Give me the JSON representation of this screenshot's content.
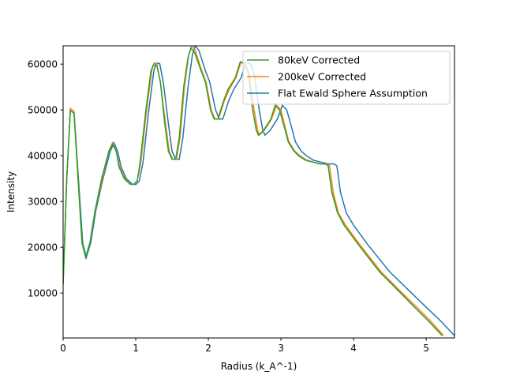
{
  "chart_data": {
    "type": "line",
    "title": "",
    "xlabel": "Radius (k_A^-1)",
    "ylabel": "Intensity",
    "xlim": [
      0,
      5.39
    ],
    "ylim": [
      200,
      64000
    ],
    "xticks": [
      0,
      1,
      2,
      3,
      4,
      5
    ],
    "yticks": [
      10000,
      20000,
      30000,
      40000,
      50000,
      60000
    ],
    "grid": false,
    "legend_placement": "upper right",
    "series": [
      {
        "name": "Flat Ewald Sphere Assumption",
        "color": "#1f77b4",
        "x": [
          0,
          0.05,
          0.1,
          0.15,
          0.27,
          0.32,
          0.38,
          0.45,
          0.55,
          0.65,
          0.7,
          0.75,
          0.8,
          0.87,
          0.95,
          1.0,
          1.05,
          1.1,
          1.18,
          1.25,
          1.28,
          1.33,
          1.38,
          1.45,
          1.5,
          1.55,
          1.6,
          1.65,
          1.72,
          1.78,
          1.82,
          1.87,
          1.95,
          2.02,
          2.1,
          2.15,
          2.2,
          2.28,
          2.35,
          2.45,
          2.52,
          2.58,
          2.63,
          2.7,
          2.75,
          2.78,
          2.85,
          2.95,
          3.02,
          3.08,
          3.15,
          3.2,
          3.28,
          3.35,
          3.45,
          3.55,
          3.65,
          3.73,
          3.77,
          3.82,
          3.9,
          4.0,
          4.2,
          4.5,
          4.8,
          5.0,
          5.2,
          5.39
        ],
        "y": [
          12000,
          35000,
          50300,
          49600,
          21000,
          17800,
          21000,
          28000,
          35000,
          41000,
          42800,
          41000,
          37500,
          35000,
          33800,
          33700,
          34500,
          38500,
          50000,
          58500,
          60200,
          60100,
          56000,
          47000,
          41000,
          39200,
          39200,
          44000,
          55000,
          62000,
          64000,
          63000,
          59000,
          56000,
          50000,
          48000,
          48000,
          52000,
          54500,
          57000,
          60500,
          60000,
          58000,
          50000,
          45500,
          44500,
          45500,
          48000,
          51000,
          50000,
          46000,
          43000,
          41000,
          40000,
          39000,
          38600,
          38200,
          38200,
          37800,
          32000,
          27500,
          24800,
          20500,
          14600,
          10000,
          6900,
          3900,
          700
        ]
      },
      {
        "name": "200keV Corrected",
        "color": "#ff7f0e",
        "x": [
          0,
          0.05,
          0.1,
          0.15,
          0.26,
          0.31,
          0.37,
          0.44,
          0.54,
          0.63,
          0.68,
          0.73,
          0.78,
          0.85,
          0.92,
          0.97,
          1.02,
          1.07,
          1.15,
          1.22,
          1.25,
          1.29,
          1.34,
          1.41,
          1.46,
          1.51,
          1.56,
          1.61,
          1.67,
          1.73,
          1.77,
          1.82,
          1.9,
          1.97,
          2.04,
          2.09,
          2.14,
          2.22,
          2.29,
          2.38,
          2.45,
          2.51,
          2.56,
          2.63,
          2.68,
          2.7,
          2.77,
          2.87,
          2.94,
          3.0,
          3.06,
          3.11,
          3.19,
          3.26,
          3.36,
          3.45,
          3.55,
          3.63,
          3.67,
          3.72,
          3.79,
          3.89,
          4.09,
          4.38,
          4.67,
          4.87,
          5.06,
          5.24
        ],
        "y": [
          12000,
          35000,
          50300,
          49600,
          21000,
          17800,
          21000,
          28000,
          35000,
          41000,
          42800,
          41000,
          37500,
          35000,
          33800,
          33700,
          34500,
          38500,
          50000,
          58500,
          60200,
          60100,
          56000,
          47000,
          41000,
          39200,
          39200,
          44000,
          55000,
          62000,
          64000,
          63000,
          59000,
          56000,
          50000,
          48000,
          48000,
          52000,
          54500,
          57000,
          60500,
          60000,
          58000,
          50000,
          45500,
          44500,
          45500,
          48000,
          51000,
          50000,
          46000,
          43000,
          41000,
          40000,
          39000,
          38600,
          38200,
          38200,
          37800,
          32000,
          27500,
          24800,
          20500,
          14600,
          10000,
          6900,
          3900,
          700
        ]
      },
      {
        "name": "80keV Corrected",
        "color": "#2ca02c",
        "x": [
          0,
          0.05,
          0.1,
          0.15,
          0.26,
          0.31,
          0.37,
          0.44,
          0.53,
          0.63,
          0.68,
          0.73,
          0.77,
          0.84,
          0.92,
          0.97,
          1.02,
          1.06,
          1.14,
          1.21,
          1.24,
          1.29,
          1.34,
          1.4,
          1.45,
          1.5,
          1.55,
          1.6,
          1.66,
          1.72,
          1.76,
          1.81,
          1.89,
          1.96,
          2.03,
          2.08,
          2.13,
          2.21,
          2.27,
          2.37,
          2.44,
          2.5,
          2.55,
          2.61,
          2.66,
          2.69,
          2.76,
          2.86,
          2.92,
          2.98,
          3.05,
          3.1,
          3.18,
          3.24,
          3.34,
          3.44,
          3.53,
          3.61,
          3.65,
          3.7,
          3.78,
          3.87,
          4.07,
          4.36,
          4.65,
          4.84,
          5.03,
          5.22
        ],
        "y": [
          12000,
          35000,
          49800,
          49300,
          21000,
          17800,
          21000,
          28000,
          35000,
          41000,
          42500,
          41000,
          37500,
          35000,
          33800,
          33700,
          34500,
          38500,
          50000,
          58500,
          59800,
          59700,
          56000,
          47000,
          41000,
          39200,
          39200,
          44000,
          55000,
          61500,
          63500,
          62500,
          59000,
          56000,
          50000,
          48000,
          48000,
          52000,
          54500,
          57000,
          60500,
          60000,
          58000,
          50000,
          45500,
          44500,
          45500,
          48000,
          51000,
          50000,
          46000,
          43000,
          41000,
          40000,
          39000,
          38600,
          38200,
          38200,
          37800,
          32000,
          27500,
          24800,
          20500,
          14600,
          10000,
          6900,
          3900,
          700
        ]
      }
    ],
    "legend_order": [
      "80keV Corrected",
      "200keV Corrected",
      "Flat Ewald Sphere Assumption"
    ]
  }
}
